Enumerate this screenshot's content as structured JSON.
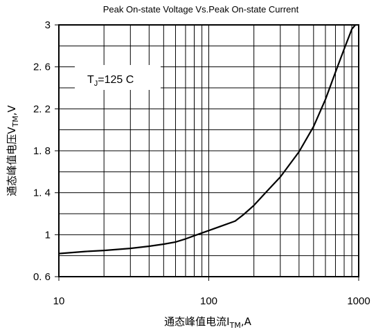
{
  "chart_data": {
    "type": "line",
    "title": "Peak On-state Voltage Vs.Peak On-state Current",
    "xscale": "log",
    "xlim": [
      10,
      1000
    ],
    "ylim": [
      0.6,
      3.0
    ],
    "x_ticks": [
      10,
      100,
      1000
    ],
    "x_tick_labels": [
      "10",
      "100",
      "1000"
    ],
    "y_ticks": [
      0.6,
      1.0,
      1.4,
      1.8,
      2.2,
      2.6,
      3.0
    ],
    "y_tick_labels": [
      "0. 6",
      "1",
      "1. 4",
      "1. 8",
      "2. 2",
      "2. 6",
      "3"
    ],
    "xlabel_main": "通态峰值电流I",
    "xlabel_sub": "TM",
    "xlabel_tail": ",A",
    "ylabel_main": "通态峰值电压V",
    "ylabel_sub": "TM",
    "ylabel_tail": ",V",
    "grid": true,
    "legend": "none",
    "annotation": {
      "prefix": "T",
      "sub": "J",
      "text": "=125  C"
    },
    "series": [
      {
        "x": [
          10,
          15,
          20,
          30,
          40,
          50,
          60,
          70,
          80,
          100,
          120,
          150,
          170,
          200,
          250,
          300,
          400,
          500,
          600,
          700,
          800,
          900,
          950
        ],
        "y": [
          0.82,
          0.84,
          0.85,
          0.87,
          0.89,
          0.91,
          0.93,
          0.96,
          0.99,
          1.04,
          1.08,
          1.13,
          1.19,
          1.28,
          1.43,
          1.55,
          1.79,
          2.03,
          2.29,
          2.55,
          2.77,
          2.96,
          3.0
        ]
      }
    ],
    "colors": {
      "line": "#000000",
      "grid": "#000000"
    }
  }
}
